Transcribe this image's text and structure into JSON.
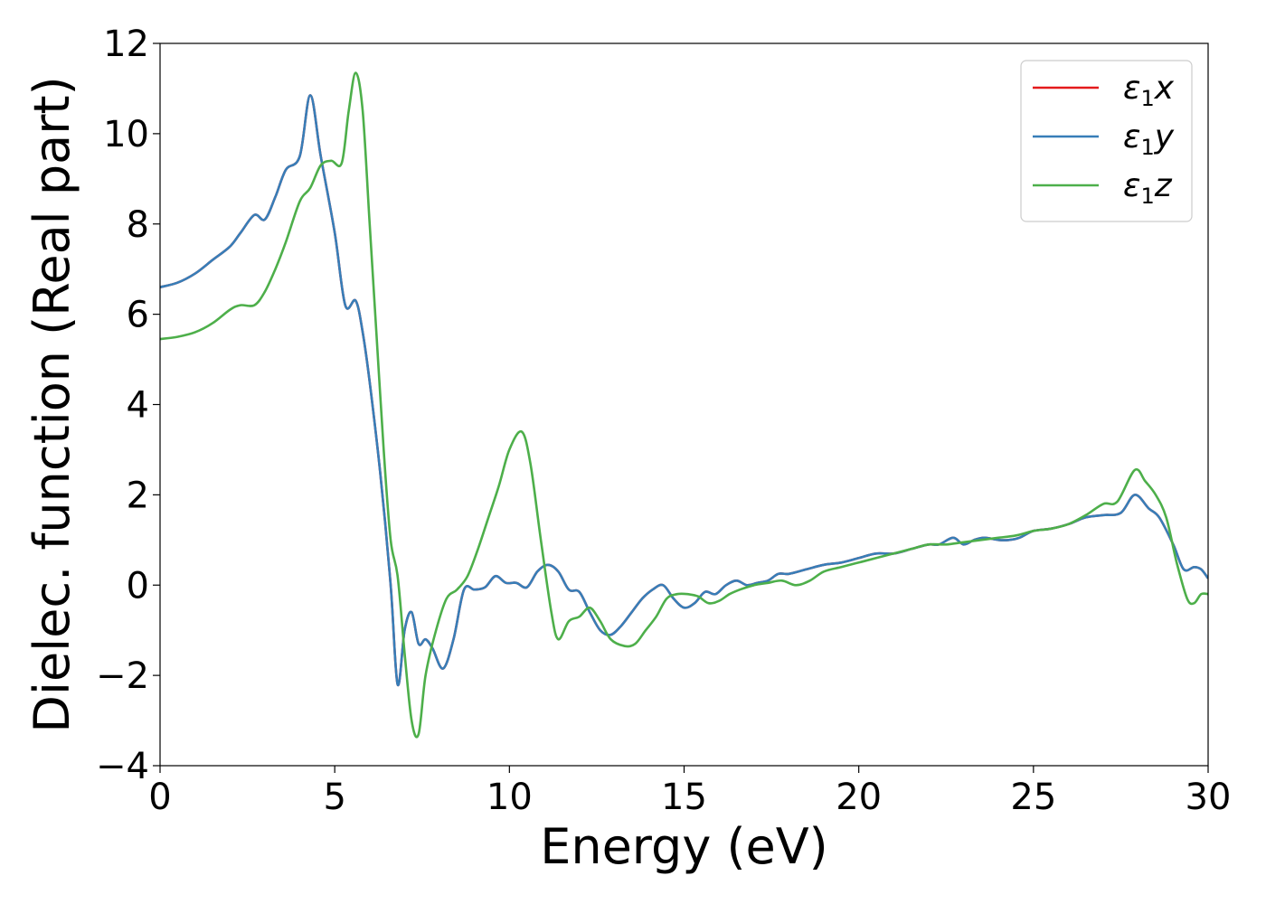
{
  "chart_data": {
    "type": "line",
    "title": "",
    "xlabel": "Energy (eV)",
    "ylabel": "Dielec. function (Real part)",
    "xlim": [
      0,
      30
    ],
    "ylim": [
      -4,
      12
    ],
    "xticks": [
      0,
      5,
      10,
      15,
      20,
      25,
      30
    ],
    "yticks": [
      -4,
      -2,
      0,
      2,
      4,
      6,
      8,
      10,
      12
    ],
    "xtick_labels": [
      "0",
      "5",
      "10",
      "15",
      "20",
      "25",
      "30"
    ],
    "ytick_labels": [
      "−4",
      "−2",
      "0",
      "2",
      "4",
      "6",
      "8",
      "10",
      "12"
    ],
    "grid": false,
    "legend_position": "top-right",
    "series": [
      {
        "name": "ε₁x",
        "legend_symbol": "ε",
        "legend_sub": "1",
        "legend_var": "x",
        "color": "#e41a1c",
        "x": [
          0,
          0.5,
          1.0,
          1.5,
          2.0,
          2.3,
          2.7,
          3.0,
          3.3,
          3.6,
          4.0,
          4.3,
          4.6,
          5.0,
          5.3,
          5.6,
          5.8,
          6.0,
          6.3,
          6.6,
          6.8,
          7.0,
          7.2,
          7.4,
          7.6,
          7.8,
          8.1,
          8.4,
          8.7,
          9.0,
          9.3,
          9.6,
          9.9,
          10.2,
          10.5,
          10.8,
          11.1,
          11.4,
          11.7,
          12.0,
          12.3,
          12.6,
          12.9,
          13.2,
          13.5,
          13.8,
          14.1,
          14.4,
          14.7,
          15.0,
          15.3,
          15.6,
          15.9,
          16.2,
          16.5,
          16.8,
          17.1,
          17.4,
          17.7,
          18.0,
          18.5,
          19.0,
          19.5,
          20.0,
          20.5,
          21.0,
          21.5,
          22.0,
          22.3,
          22.7,
          23.0,
          23.3,
          23.6,
          24.0,
          24.3,
          24.6,
          25.0,
          25.5,
          26.0,
          26.5,
          27.0,
          27.5,
          27.9,
          28.3,
          28.6,
          29.0,
          29.3,
          29.6,
          29.8,
          30.0
        ],
        "y": [
          6.6,
          6.7,
          6.9,
          7.2,
          7.5,
          7.8,
          8.2,
          8.1,
          8.6,
          9.2,
          9.5,
          10.85,
          9.5,
          7.8,
          6.2,
          6.3,
          5.6,
          4.5,
          2.5,
          0.0,
          -2.2,
          -1.0,
          -0.6,
          -1.3,
          -1.2,
          -1.4,
          -1.85,
          -1.2,
          -0.1,
          -0.1,
          -0.05,
          0.2,
          0.05,
          0.05,
          -0.05,
          0.3,
          0.45,
          0.3,
          -0.1,
          -0.15,
          -0.6,
          -1.0,
          -1.1,
          -0.9,
          -0.6,
          -0.3,
          -0.1,
          0.0,
          -0.3,
          -0.5,
          -0.4,
          -0.15,
          -0.2,
          0.0,
          0.1,
          0.0,
          0.05,
          0.1,
          0.25,
          0.25,
          0.35,
          0.45,
          0.5,
          0.6,
          0.7,
          0.7,
          0.8,
          0.9,
          0.9,
          1.05,
          0.9,
          1.0,
          1.05,
          1.0,
          1.0,
          1.05,
          1.2,
          1.25,
          1.35,
          1.5,
          1.55,
          1.6,
          2.0,
          1.7,
          1.5,
          0.9,
          0.35,
          0.4,
          0.35,
          0.15
        ]
      },
      {
        "name": "ε₁y",
        "legend_symbol": "ε",
        "legend_sub": "1",
        "legend_var": "y",
        "color": "#377eb8",
        "x": [
          0,
          0.5,
          1.0,
          1.5,
          2.0,
          2.3,
          2.7,
          3.0,
          3.3,
          3.6,
          4.0,
          4.3,
          4.6,
          5.0,
          5.3,
          5.6,
          5.8,
          6.0,
          6.3,
          6.6,
          6.8,
          7.0,
          7.2,
          7.4,
          7.6,
          7.8,
          8.1,
          8.4,
          8.7,
          9.0,
          9.3,
          9.6,
          9.9,
          10.2,
          10.5,
          10.8,
          11.1,
          11.4,
          11.7,
          12.0,
          12.3,
          12.6,
          12.9,
          13.2,
          13.5,
          13.8,
          14.1,
          14.4,
          14.7,
          15.0,
          15.3,
          15.6,
          15.9,
          16.2,
          16.5,
          16.8,
          17.1,
          17.4,
          17.7,
          18.0,
          18.5,
          19.0,
          19.5,
          20.0,
          20.5,
          21.0,
          21.5,
          22.0,
          22.3,
          22.7,
          23.0,
          23.3,
          23.6,
          24.0,
          24.3,
          24.6,
          25.0,
          25.5,
          26.0,
          26.5,
          27.0,
          27.5,
          27.9,
          28.3,
          28.6,
          29.0,
          29.3,
          29.6,
          29.8,
          30.0
        ],
        "y": [
          6.6,
          6.7,
          6.9,
          7.2,
          7.5,
          7.8,
          8.2,
          8.1,
          8.6,
          9.2,
          9.5,
          10.85,
          9.5,
          7.8,
          6.2,
          6.3,
          5.6,
          4.5,
          2.5,
          0.0,
          -2.2,
          -1.0,
          -0.6,
          -1.3,
          -1.2,
          -1.4,
          -1.85,
          -1.2,
          -0.1,
          -0.1,
          -0.05,
          0.2,
          0.05,
          0.05,
          -0.05,
          0.3,
          0.45,
          0.3,
          -0.1,
          -0.15,
          -0.6,
          -1.0,
          -1.1,
          -0.9,
          -0.6,
          -0.3,
          -0.1,
          0.0,
          -0.3,
          -0.5,
          -0.4,
          -0.15,
          -0.2,
          0.0,
          0.1,
          0.0,
          0.05,
          0.1,
          0.25,
          0.25,
          0.35,
          0.45,
          0.5,
          0.6,
          0.7,
          0.7,
          0.8,
          0.9,
          0.9,
          1.05,
          0.9,
          1.0,
          1.05,
          1.0,
          1.0,
          1.05,
          1.2,
          1.25,
          1.35,
          1.5,
          1.55,
          1.6,
          2.0,
          1.7,
          1.5,
          0.9,
          0.35,
          0.4,
          0.35,
          0.15
        ]
      },
      {
        "name": "ε₁z",
        "legend_symbol": "ε",
        "legend_sub": "1",
        "legend_var": "z",
        "color": "#4daf4a",
        "x": [
          0,
          0.5,
          1.0,
          1.5,
          2.0,
          2.3,
          2.7,
          3.0,
          3.3,
          3.6,
          4.0,
          4.3,
          4.6,
          4.9,
          5.2,
          5.4,
          5.6,
          5.8,
          6.0,
          6.2,
          6.4,
          6.6,
          6.8,
          7.0,
          7.2,
          7.4,
          7.6,
          7.9,
          8.2,
          8.5,
          8.8,
          9.1,
          9.4,
          9.7,
          10.0,
          10.35,
          10.6,
          10.9,
          11.2,
          11.4,
          11.7,
          12.0,
          12.3,
          12.6,
          12.9,
          13.3,
          13.6,
          13.9,
          14.2,
          14.5,
          14.8,
          15.1,
          15.4,
          15.7,
          16.0,
          16.3,
          16.6,
          17.0,
          17.4,
          17.8,
          18.2,
          18.6,
          19.0,
          19.5,
          20.0,
          20.5,
          21.0,
          21.5,
          22.0,
          22.5,
          23.0,
          23.5,
          24.0,
          24.5,
          25.0,
          25.5,
          26.0,
          26.5,
          27.0,
          27.4,
          27.9,
          28.2,
          28.5,
          28.8,
          29.1,
          29.4,
          29.6,
          29.8,
          30.0
        ],
        "y": [
          5.45,
          5.5,
          5.6,
          5.8,
          6.1,
          6.2,
          6.2,
          6.5,
          7.0,
          7.6,
          8.5,
          8.8,
          9.3,
          9.4,
          9.35,
          10.5,
          11.35,
          10.5,
          8.0,
          5.5,
          3.0,
          1.0,
          0.2,
          -1.5,
          -3.0,
          -3.3,
          -2.0,
          -1.0,
          -0.3,
          -0.1,
          0.2,
          0.8,
          1.5,
          2.2,
          3.0,
          3.4,
          2.7,
          1.0,
          -0.6,
          -1.2,
          -0.8,
          -0.7,
          -0.5,
          -0.8,
          -1.2,
          -1.35,
          -1.3,
          -1.0,
          -0.7,
          -0.3,
          -0.2,
          -0.2,
          -0.25,
          -0.4,
          -0.35,
          -0.2,
          -0.1,
          0.0,
          0.05,
          0.1,
          0.0,
          0.1,
          0.3,
          0.4,
          0.5,
          0.6,
          0.7,
          0.8,
          0.9,
          0.9,
          0.95,
          1.0,
          1.05,
          1.1,
          1.2,
          1.25,
          1.35,
          1.55,
          1.8,
          1.85,
          2.55,
          2.3,
          2.0,
          1.5,
          0.5,
          -0.3,
          -0.4,
          -0.2,
          -0.2
        ]
      }
    ]
  }
}
